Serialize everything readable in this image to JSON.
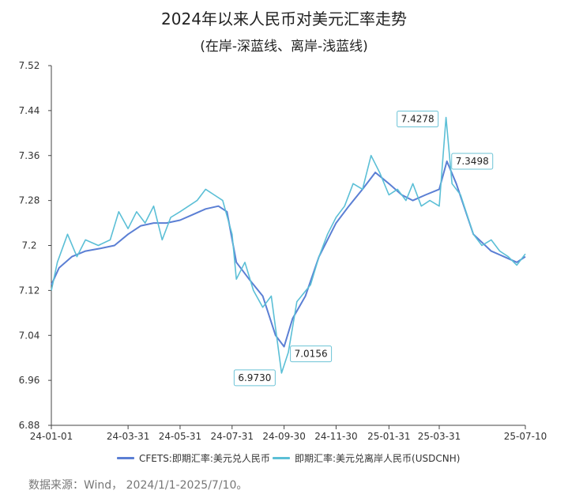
{
  "title": "2024年以来人民币对美元汇率走势",
  "subtitle": "(在岸-深蓝线、离岸-浅蓝线)",
  "source": "数据来源：Wind， 2024/1/1-2025/7/10。",
  "chart_data": {
    "type": "line",
    "ylim": [
      6.88,
      7.52
    ],
    "yticks": [
      "6.88",
      "6.96",
      "7.04",
      "7.12",
      "7.2",
      "7.28",
      "7.36",
      "7.44",
      "7.52"
    ],
    "xticks": [
      "24-01-01",
      "24-03-31",
      "24-05-31",
      "24-07-31",
      "24-09-30",
      "24-11-30",
      "25-01-31",
      "25-03-31",
      "25-07-10"
    ],
    "series": [
      {
        "name": "CFETS:即期汇率:美元兑人民币",
        "color": "#5b7fd4",
        "values": [
          [
            "2024-01-01",
            7.13
          ],
          [
            "2024-01-10",
            7.16
          ],
          [
            "2024-01-25",
            7.18
          ],
          [
            "2024-02-10",
            7.19
          ],
          [
            "2024-02-28",
            7.195
          ],
          [
            "2024-03-15",
            7.2
          ],
          [
            "2024-03-31",
            7.22
          ],
          [
            "2024-04-15",
            7.235
          ],
          [
            "2024-04-30",
            7.24
          ],
          [
            "2024-05-15",
            7.24
          ],
          [
            "2024-05-31",
            7.245
          ],
          [
            "2024-06-15",
            7.255
          ],
          [
            "2024-06-30",
            7.265
          ],
          [
            "2024-07-15",
            7.27
          ],
          [
            "2024-07-25",
            7.26
          ],
          [
            "2024-08-05",
            7.17
          ],
          [
            "2024-08-20",
            7.14
          ],
          [
            "2024-09-05",
            7.11
          ],
          [
            "2024-09-20",
            7.04
          ],
          [
            "2024-09-30",
            7.02
          ],
          [
            "2024-10-10",
            7.07
          ],
          [
            "2024-10-25",
            7.11
          ],
          [
            "2024-11-10",
            7.18
          ],
          [
            "2024-11-30",
            7.24
          ],
          [
            "2024-12-15",
            7.27
          ],
          [
            "2024-12-31",
            7.3
          ],
          [
            "2025-01-15",
            7.33
          ],
          [
            "2025-01-31",
            7.31
          ],
          [
            "2025-02-15",
            7.29
          ],
          [
            "2025-02-28",
            7.28
          ],
          [
            "2025-03-15",
            7.29
          ],
          [
            "2025-03-31",
            7.3
          ],
          [
            "2025-04-09",
            7.3498
          ],
          [
            "2025-04-20",
            7.31
          ],
          [
            "2025-05-10",
            7.22
          ],
          [
            "2025-05-31",
            7.19
          ],
          [
            "2025-06-15",
            7.18
          ],
          [
            "2025-06-30",
            7.17
          ],
          [
            "2025-07-10",
            7.18
          ]
        ]
      },
      {
        "name": "即期汇率:美元兑离岸人民币(USDCNH)",
        "color": "#5bbfd6",
        "values": [
          [
            "2024-01-01",
            7.12
          ],
          [
            "2024-01-08",
            7.17
          ],
          [
            "2024-01-20",
            7.22
          ],
          [
            "2024-01-31",
            7.18
          ],
          [
            "2024-02-10",
            7.21
          ],
          [
            "2024-02-25",
            7.2
          ],
          [
            "2024-03-10",
            7.21
          ],
          [
            "2024-03-20",
            7.26
          ],
          [
            "2024-03-31",
            7.23
          ],
          [
            "2024-04-10",
            7.26
          ],
          [
            "2024-04-20",
            7.24
          ],
          [
            "2024-04-30",
            7.27
          ],
          [
            "2024-05-10",
            7.21
          ],
          [
            "2024-05-20",
            7.25
          ],
          [
            "2024-05-31",
            7.26
          ],
          [
            "2024-06-10",
            7.27
          ],
          [
            "2024-06-20",
            7.28
          ],
          [
            "2024-06-30",
            7.3
          ],
          [
            "2024-07-10",
            7.29
          ],
          [
            "2024-07-20",
            7.28
          ],
          [
            "2024-07-31",
            7.22
          ],
          [
            "2024-08-05",
            7.14
          ],
          [
            "2024-08-15",
            7.17
          ],
          [
            "2024-08-25",
            7.12
          ],
          [
            "2024-09-05",
            7.09
          ],
          [
            "2024-09-15",
            7.11
          ],
          [
            "2024-09-27",
            6.973
          ],
          [
            "2024-10-05",
            7.01
          ],
          [
            "2024-10-15",
            7.1
          ],
          [
            "2024-10-31",
            7.13
          ],
          [
            "2024-11-10",
            7.18
          ],
          [
            "2024-11-20",
            7.22
          ],
          [
            "2024-11-30",
            7.25
          ],
          [
            "2024-12-10",
            7.27
          ],
          [
            "2024-12-20",
            7.31
          ],
          [
            "2024-12-31",
            7.3
          ],
          [
            "2025-01-10",
            7.36
          ],
          [
            "2025-01-20",
            7.33
          ],
          [
            "2025-01-31",
            7.29
          ],
          [
            "2025-02-10",
            7.3
          ],
          [
            "2025-02-20",
            7.28
          ],
          [
            "2025-02-28",
            7.31
          ],
          [
            "2025-03-10",
            7.27
          ],
          [
            "2025-03-20",
            7.28
          ],
          [
            "2025-03-31",
            7.27
          ],
          [
            "2025-04-08",
            7.4278
          ],
          [
            "2025-04-15",
            7.31
          ],
          [
            "2025-04-25",
            7.29
          ],
          [
            "2025-05-10",
            7.22
          ],
          [
            "2025-05-20",
            7.2
          ],
          [
            "2025-05-31",
            7.21
          ],
          [
            "2025-06-10",
            7.19
          ],
          [
            "2025-06-20",
            7.18
          ],
          [
            "2025-06-30",
            7.165
          ],
          [
            "2025-07-10",
            7.185
          ]
        ]
      }
    ],
    "annotations": [
      {
        "label": "7.4278",
        "x": "2025-04-08",
        "y": 7.4278
      },
      {
        "label": "7.3498",
        "x": "2025-04-09",
        "y": 7.3498
      },
      {
        "label": "7.0156",
        "x": "2024-09-30",
        "y": 7.0156
      },
      {
        "label": "6.9730",
        "x": "2024-09-27",
        "y": 6.973
      }
    ]
  }
}
